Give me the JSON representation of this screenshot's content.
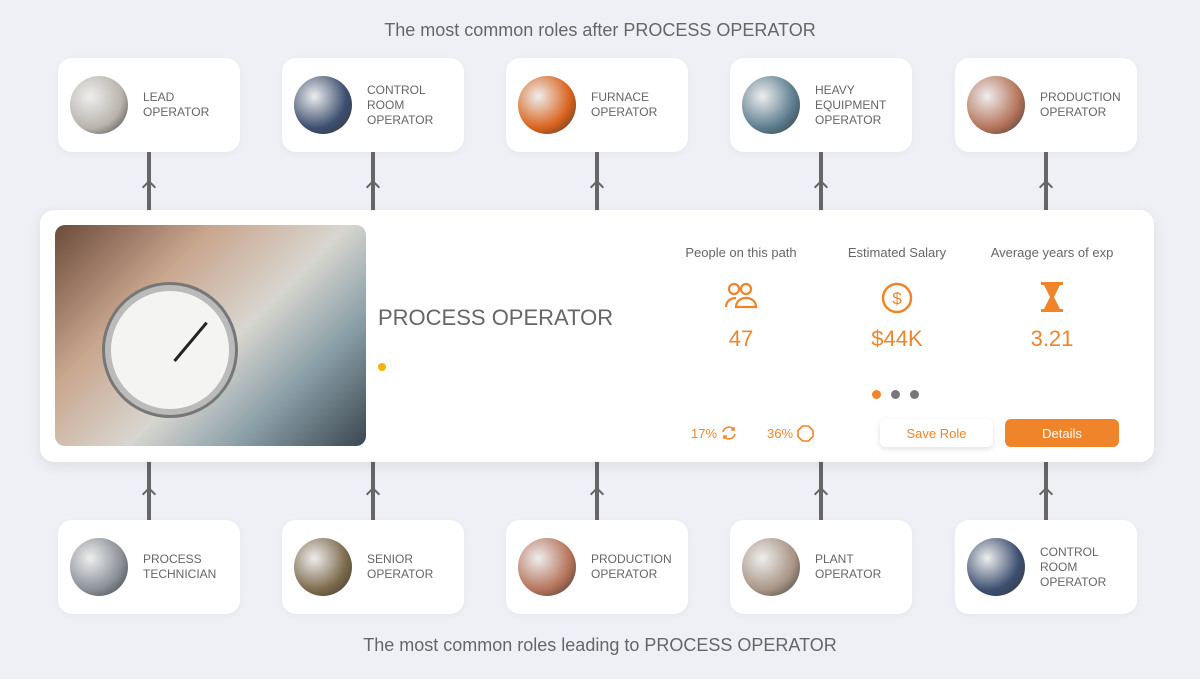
{
  "headings": {
    "top": "The most common roles after PROCESS OPERATOR",
    "bottom": "The most common roles leading to PROCESS OPERATOR"
  },
  "next_roles": [
    {
      "label": "LEAD OPERATOR",
      "thumb_color": "#b8b4ac"
    },
    {
      "label": "CONTROL ROOM OPERATOR",
      "thumb_color": "#3c4f70"
    },
    {
      "label": "FURNACE OPERATOR",
      "thumb_color": "#d9621c"
    },
    {
      "label": "HEAVY EQUIPMENT OPERATOR",
      "thumb_color": "#5c7d8f"
    },
    {
      "label": "PRODUCTION OPERATOR",
      "thumb_color": "#b5735a"
    }
  ],
  "previous_roles": [
    {
      "label": "PROCESS TECHNICIAN",
      "thumb_color": "#8a8f96"
    },
    {
      "label": "SENIOR OPERATOR",
      "thumb_color": "#7d6a4c"
    },
    {
      "label": "PRODUCTION OPERATOR",
      "thumb_color": "#b5735a"
    },
    {
      "label": "PLANT OPERATOR",
      "thumb_color": "#a89484"
    },
    {
      "label": "CONTROL ROOM OPERATOR",
      "thumb_color": "#3c4f70"
    }
  ],
  "current_role": {
    "title": "PROCESS OPERATOR",
    "stats": [
      {
        "label": "People on this path",
        "value": "47",
        "icon": "people-icon"
      },
      {
        "label": "Estimated Salary",
        "value": "$44K",
        "icon": "dollar-circle-icon"
      },
      {
        "label": "Average years of exp",
        "value": "3.21",
        "icon": "hourglass-icon"
      }
    ],
    "carousel": {
      "pages": 3,
      "active": 1
    },
    "metrics": [
      {
        "value": "17%",
        "icon": "refresh-icon"
      },
      {
        "value": "36%",
        "icon": "octagon-icon"
      }
    ],
    "save_label": "Save Role",
    "details_label": "Details"
  },
  "colors": {
    "accent": "#f0842a",
    "background": "#eef0f6"
  }
}
